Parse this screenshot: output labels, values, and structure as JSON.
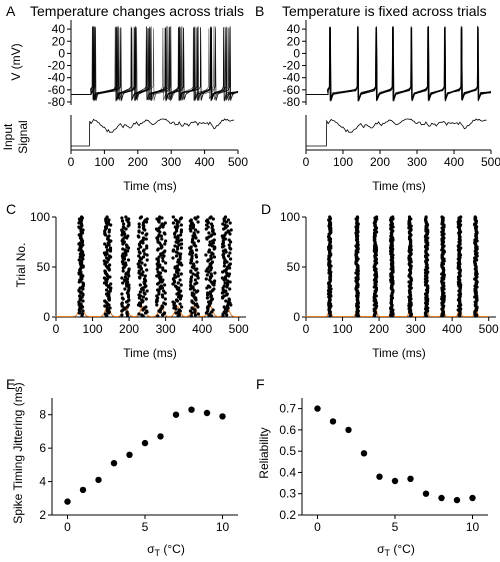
{
  "panels": {
    "A": {
      "letter": "A",
      "title": "Temperature changes across trials",
      "ylabel": "V (mV)",
      "signal_label_1": "Input",
      "signal_label_2": "Signal",
      "xlabel": "Time (ms)",
      "yticks": [
        "40",
        "20",
        "0",
        "-20",
        "-40",
        "-60",
        "-80"
      ],
      "xticks": [
        "0",
        "100",
        "200",
        "300",
        "400",
        "500"
      ]
    },
    "B": {
      "letter": "B",
      "title": "Temperature is fixed across trials",
      "xlabel": "Time (ms)",
      "yticks": [
        "40",
        "20",
        "0",
        "-20",
        "-40",
        "-60",
        "-80"
      ],
      "xticks": [
        "0",
        "100",
        "200",
        "300",
        "400",
        "500"
      ]
    },
    "C": {
      "letter": "C",
      "ylabel": "Trial No.",
      "xlabel": "Time (ms)",
      "yticks": [
        "100",
        "50",
        "0"
      ],
      "xticks": [
        "0",
        "100",
        "200",
        "300",
        "400",
        "500"
      ]
    },
    "D": {
      "letter": "D",
      "xlabel": "Time (ms)",
      "yticks": [
        "100",
        "50",
        "0"
      ],
      "xticks": [
        "0",
        "100",
        "200",
        "300",
        "400",
        "500"
      ]
    },
    "E": {
      "letter": "E",
      "ylabel": "Spike Timing Jittering (ms)",
      "xlabel_main": "σ",
      "xlabel_sub": "T",
      "xlabel_unit": " (°C)",
      "yticks": [
        "8",
        "6",
        "4",
        "2"
      ],
      "xticks": [
        "0",
        "5",
        "10"
      ]
    },
    "F": {
      "letter": "F",
      "ylabel": "Reliability",
      "xlabel_main": "σ",
      "xlabel_sub": "T",
      "xlabel_unit": " (°C)",
      "yticks": [
        "0.7",
        "0.6",
        "0.5",
        "0.4",
        "0.3",
        "0.2"
      ],
      "xticks": [
        "0",
        "5",
        "10"
      ]
    }
  },
  "colors": {
    "ink": "#000000",
    "raster_dots": "#000000",
    "density_trace": "#e8781e"
  },
  "chart_data": [
    {
      "panel": "A",
      "type": "line",
      "title": "Temperature changes across trials",
      "xlabel": "Time (ms)",
      "ylabel": "V (mV)",
      "xlim": [
        0,
        500
      ],
      "ylim": [
        -85,
        55
      ],
      "resting_potential": -68,
      "spike_peak": 45,
      "reset": -75,
      "spike_bursts_ms": [
        [
          62,
          75
        ],
        [
          132,
          150
        ],
        [
          180,
          200
        ],
        [
          225,
          250
        ],
        [
          275,
          300
        ],
        [
          320,
          345
        ],
        [
          365,
          390
        ],
        [
          410,
          435
        ],
        [
          455,
          480
        ]
      ],
      "jitter": "high"
    },
    {
      "panel": "B",
      "type": "line",
      "title": "Temperature is fixed across trials",
      "xlabel": "Time (ms)",
      "xlim": [
        0,
        500
      ],
      "ylim": [
        -85,
        55
      ],
      "resting_potential": -68,
      "spike_peak": 45,
      "reset": -75,
      "spike_times_ms": [
        65,
        140,
        190,
        235,
        285,
        330,
        375,
        420,
        465
      ],
      "jitter": "low"
    },
    {
      "panel": "C",
      "type": "scatter",
      "ylabel": "Trial No.",
      "xlabel": "Time (ms)",
      "xlim": [
        0,
        520
      ],
      "ylim": [
        0,
        100
      ],
      "trials": 100,
      "spike_bursts_ms": [
        [
          62,
          75
        ],
        [
          132,
          150
        ],
        [
          180,
          200
        ],
        [
          225,
          250
        ],
        [
          275,
          300
        ],
        [
          320,
          345
        ],
        [
          365,
          390
        ],
        [
          410,
          435
        ],
        [
          455,
          480
        ]
      ]
    },
    {
      "panel": "D",
      "type": "scatter",
      "xlabel": "Time (ms)",
      "xlim": [
        0,
        520
      ],
      "ylim": [
        0,
        100
      ],
      "trials": 100,
      "spike_times_ms": [
        65,
        140,
        190,
        235,
        285,
        330,
        375,
        420,
        465
      ]
    },
    {
      "panel": "E",
      "type": "scatter",
      "ylabel": "Spike Timing Jittering (ms)",
      "xlabel": "σT (°C)",
      "xlim": [
        -1,
        11
      ],
      "ylim": [
        2,
        9
      ],
      "x": [
        0,
        1,
        2,
        3,
        4,
        5,
        6,
        7,
        8,
        9,
        10
      ],
      "y": [
        2.8,
        3.5,
        4.1,
        5.1,
        5.6,
        6.3,
        6.7,
        8.0,
        8.3,
        8.1,
        7.9
      ]
    },
    {
      "panel": "F",
      "type": "scatter",
      "ylabel": "Reliability",
      "xlabel": "σT (°C)",
      "xlim": [
        -1,
        11
      ],
      "ylim": [
        0.2,
        0.75
      ],
      "x": [
        0,
        1,
        2,
        3,
        4,
        5,
        6,
        7,
        8,
        9,
        10
      ],
      "y": [
        0.7,
        0.64,
        0.6,
        0.49,
        0.38,
        0.36,
        0.37,
        0.3,
        0.28,
        0.27,
        0.28
      ]
    }
  ]
}
